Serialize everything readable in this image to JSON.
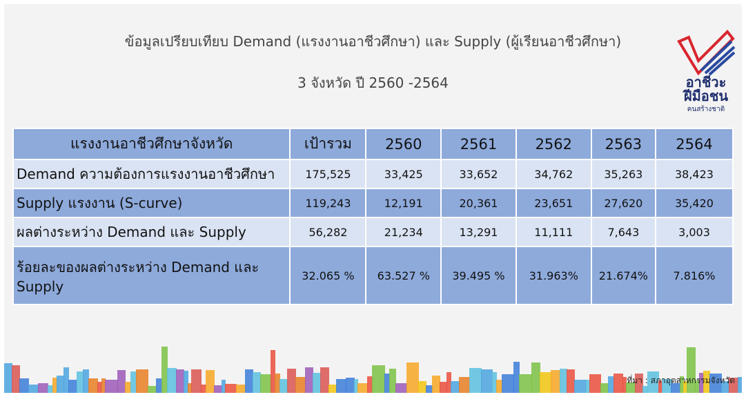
{
  "header": {
    "title": "ข้อมูลเปรียบเทียบ Demand (แรงงานอาชีวศึกษา) และ  Supply (ผู้เรียนอาชีวศึกษา)",
    "subtitle": "3 จังหวัด ปี 2560 -2564"
  },
  "logo": {
    "line1": "อาชีวะ",
    "line2": "ฝีมือชน",
    "line3": "คนสร้างชาติ"
  },
  "table": {
    "columns": [
      "แรงงานอาชีวศึกษาจังหวัด",
      "เป้ารวม",
      "2560",
      "2561",
      "2562",
      "2563",
      "2564"
    ],
    "rows": [
      [
        "Demand ความต้องการแรงงานอาชีวศึกษา",
        "175,525",
        "33,425",
        "33,652",
        "34,762",
        "35,263",
        "38,423"
      ],
      [
        "Supply แรงงาน (S-curve)",
        "119,243",
        "12,191",
        "20,361",
        "23,651",
        "27,620",
        "35,420"
      ],
      [
        "ผลต่างระหว่าง Demand และ Supply",
        "56,282",
        "21,234",
        "13,291",
        "11,111",
        "7,643",
        "3,003"
      ],
      [
        "ร้อยละของผลต่างระหว่าง Demand และ Supply",
        "32.065 %",
        "63.527 %",
        "39.495 %",
        "31.963%",
        "21.674%",
        "7.816%"
      ]
    ]
  },
  "footer": {
    "source": "ที่มา : สภาอุตสาหกรรมจังหวัด"
  }
}
